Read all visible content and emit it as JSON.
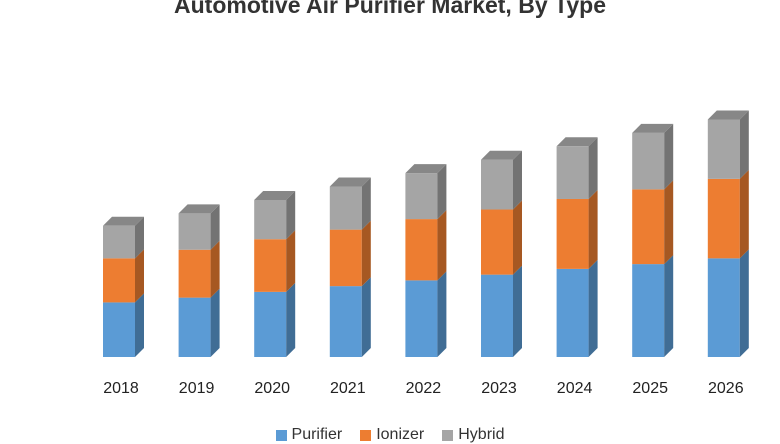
{
  "chart_data": {
    "type": "bar",
    "stacked": true,
    "title": "Automotive Air Purifier Market, By Type",
    "categories": [
      "2018",
      "2019",
      "2020",
      "2021",
      "2022",
      "2023",
      "2024",
      "2025",
      "2026"
    ],
    "series": [
      {
        "name": "Purifier",
        "color": "#5B9BD5",
        "values": [
          57,
          62,
          68,
          74,
          80,
          86,
          92,
          97,
          103
        ]
      },
      {
        "name": "Ionizer",
        "color": "#ED7D31",
        "values": [
          46,
          50,
          55,
          59,
          64,
          68,
          73,
          78,
          83
        ]
      },
      {
        "name": "Hybrid",
        "color": "#A5A5A5",
        "values": [
          34,
          38,
          41,
          45,
          48,
          52,
          55,
          59,
          62
        ]
      }
    ],
    "ylim": [
      0,
      260
    ],
    "grid": false,
    "legend_position": "bottom"
  }
}
